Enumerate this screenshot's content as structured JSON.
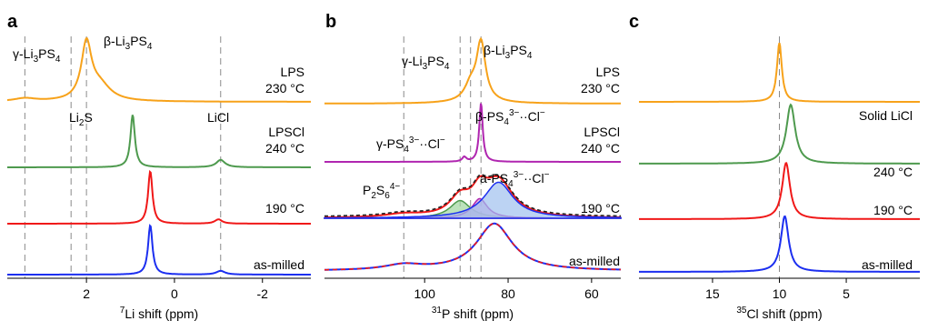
{
  "colors": {
    "orange": "#f7a21a",
    "green": "#4e9a4e",
    "red": "#f01818",
    "blue": "#1c2ff0",
    "magenta": "#b026b0",
    "fit_green_fill": "#9fd69f",
    "fit_magenta_fill": "#d8a0d8",
    "fit_blue_fill": "#9fc0ee",
    "fit_envelope": "#222222",
    "guide": "#8a8a8a"
  },
  "chart_data": [
    {
      "panel": "a",
      "type": "line",
      "xlabel": "7Li shift (ppm)",
      "xlabel_parts": {
        "sup": "7",
        "text": "Li shift (ppm)"
      },
      "xlim": [
        3.8,
        -3.1
      ],
      "x_reversed": true,
      "xticks": [
        2,
        0,
        -2
      ],
      "xtick_labels": [
        "2",
        "0",
        "-2"
      ],
      "series": [
        {
          "trace_label": [
            "LPS",
            "230 °C"
          ],
          "color": "orange",
          "baseline": 1.0,
          "peaks": [
            {
              "x": 2.0,
              "h": 0.9,
              "w": 0.14
            },
            {
              "x": 1.7,
              "h": 0.25,
              "w": 0.3
            },
            {
              "x": 3.4,
              "h": 0.05,
              "w": 0.3
            }
          ]
        },
        {
          "trace_label": [
            "LPSCl",
            "240 °C"
          ],
          "color": "green",
          "baseline": 1.0,
          "peaks": [
            {
              "x": 0.95,
              "h": 0.85,
              "w": 0.06
            },
            {
              "x": -1.05,
              "h": 0.12,
              "w": 0.12
            }
          ]
        },
        {
          "trace_label": [
            "190 °C"
          ],
          "color": "red",
          "baseline": 1.0,
          "peaks": [
            {
              "x": 0.55,
              "h": 0.85,
              "w": 0.06
            },
            {
              "x": -1.0,
              "h": 0.07,
              "w": 0.1
            }
          ]
        },
        {
          "trace_label": [
            "as-milled"
          ],
          "color": "blue",
          "baseline": 1.0,
          "peaks": [
            {
              "x": 0.55,
              "h": 0.8,
              "w": 0.06
            },
            {
              "x": -1.05,
              "h": 0.06,
              "w": 0.12
            }
          ]
        }
      ],
      "guides": [
        3.4,
        2.35,
        2.0,
        -1.05
      ],
      "annotations": [
        {
          "text": "γ-Li3PS4",
          "parts": [
            [
              "γ-Li",
              ""
            ],
            [
              "3",
              "sub"
            ],
            [
              "PS",
              ""
            ],
            [
              "4",
              "sub"
            ]
          ]
        },
        {
          "text": "β-Li3PS4",
          "parts": [
            [
              "β-Li",
              ""
            ],
            [
              "3",
              "sub"
            ],
            [
              "PS",
              ""
            ],
            [
              "4",
              "sub"
            ]
          ]
        },
        {
          "text": "Li2S",
          "parts": [
            [
              "Li",
              ""
            ],
            [
              "2",
              "sub"
            ],
            [
              "S",
              ""
            ]
          ]
        },
        {
          "text": "LiCl",
          "parts": [
            [
              "LiCl",
              ""
            ]
          ]
        }
      ]
    },
    {
      "panel": "b",
      "type": "line",
      "xlabel": "31P shift (ppm)",
      "xlabel_parts": {
        "sup": "31",
        "text": "P shift (ppm)"
      },
      "xlim": [
        124,
        53
      ],
      "x_reversed": true,
      "xticks": [
        100,
        80,
        60
      ],
      "xtick_labels": [
        "100",
        "80",
        "60"
      ],
      "series": [
        {
          "trace_label": [
            "LPS",
            "230 °C"
          ],
          "color": "orange",
          "baseline": 1.0,
          "peaks": [
            {
              "x": 86.5,
              "h": 0.88,
              "w": 1.3
            },
            {
              "x": 89.0,
              "h": 0.2,
              "w": 1.6
            },
            {
              "x": 88.0,
              "h": 0.06,
              "w": 4.0
            }
          ]
        },
        {
          "trace_label": [
            "LPSCl",
            "240 °C"
          ],
          "color": "magenta",
          "baseline": 1.0,
          "peaks": [
            {
              "x": 86.5,
              "h": 0.9,
              "w": 0.5
            },
            {
              "x": 90.5,
              "h": 0.07,
              "w": 0.6
            }
          ]
        },
        {
          "trace_label": [
            "190 °C"
          ],
          "color": "red",
          "baseline": 1.0,
          "peaks": [
            {
              "x": 91.5,
              "h": 0.27,
              "w": 3.0
            },
            {
              "x": 86.8,
              "h": 0.3,
              "w": 2.2
            },
            {
              "x": 82.3,
              "h": 0.55,
              "w": 4.2
            },
            {
              "x": 105.0,
              "h": 0.05,
              "w": 5.5
            }
          ]
        },
        {
          "trace_label": [
            "as-milled"
          ],
          "color": "blue",
          "baseline": 1.0,
          "peaks": [
            {
              "x": 83.3,
              "h": 0.72,
              "w": 5.2
            },
            {
              "x": 105.0,
              "h": 0.08,
              "w": 5.5
            }
          ]
        }
      ],
      "guides": [
        105.0,
        91.5,
        89.0,
        86.5
      ],
      "annotations": [
        {
          "text": "γ-Li3PS4",
          "parts": [
            [
              "γ-Li",
              ""
            ],
            [
              "3",
              "sub"
            ],
            [
              "PS",
              ""
            ],
            [
              "4",
              "sub"
            ]
          ]
        },
        {
          "text": "β-Li3PS4",
          "parts": [
            [
              "β-Li",
              ""
            ],
            [
              "3",
              "sub"
            ],
            [
              "PS",
              ""
            ],
            [
              "4",
              "sub"
            ]
          ]
        },
        {
          "text": "γ-PS43−··Cl−",
          "parts": [
            [
              "γ-PS",
              ""
            ],
            [
              "4",
              "sub"
            ],
            [
              "3−",
              "sup"
            ],
            [
              "··Cl",
              ""
            ],
            [
              "−",
              "sup"
            ]
          ]
        },
        {
          "text": "β-PS43−··Cl−",
          "parts": [
            [
              "β-PS",
              ""
            ],
            [
              "4",
              "sub"
            ],
            [
              "3−",
              "sup"
            ],
            [
              "··Cl",
              ""
            ],
            [
              "−",
              "sup"
            ]
          ]
        },
        {
          "text": "P2S64−",
          "parts": [
            [
              "P",
              ""
            ],
            [
              "2",
              "sub"
            ],
            [
              "S",
              ""
            ],
            [
              "6",
              "sub"
            ],
            [
              "4−",
              "sup"
            ]
          ]
        },
        {
          "text": "a-PS43−··Cl−",
          "parts": [
            [
              "a-PS",
              ""
            ],
            [
              "4",
              "sub"
            ],
            [
              "3−",
              "sup"
            ],
            [
              "··Cl",
              ""
            ],
            [
              "−",
              "sup"
            ]
          ]
        }
      ]
    },
    {
      "panel": "c",
      "type": "line",
      "xlabel": "35Cl shift (ppm)",
      "xlabel_parts": {
        "sup": "35",
        "text": "Cl shift (ppm)"
      },
      "xlim": [
        20.5,
        -0.5
      ],
      "x_reversed": true,
      "xticks": [
        15,
        10,
        5
      ],
      "xtick_labels": [
        "15",
        "10",
        "5"
      ],
      "series": [
        {
          "trace_label": [
            "Solid LiCl"
          ],
          "color": "orange",
          "baseline": 1.0,
          "peaks": [
            {
              "x": 10.0,
              "h": 0.9,
              "w": 0.22
            }
          ]
        },
        {
          "trace_label": [
            "240 °C"
          ],
          "color": "green",
          "baseline": 1.0,
          "peaks": [
            {
              "x": 9.15,
              "h": 0.9,
              "w": 0.4
            }
          ]
        },
        {
          "trace_label": [
            "190 °C"
          ],
          "color": "red",
          "baseline": 1.0,
          "peaks": [
            {
              "x": 9.5,
              "h": 0.86,
              "w": 0.35
            }
          ]
        },
        {
          "trace_label": [
            "as-milled"
          ],
          "color": "blue",
          "baseline": 1.0,
          "peaks": [
            {
              "x": 9.6,
              "h": 0.85,
              "w": 0.35
            }
          ]
        }
      ],
      "guides": [
        10.0
      ],
      "annotations": []
    }
  ]
}
